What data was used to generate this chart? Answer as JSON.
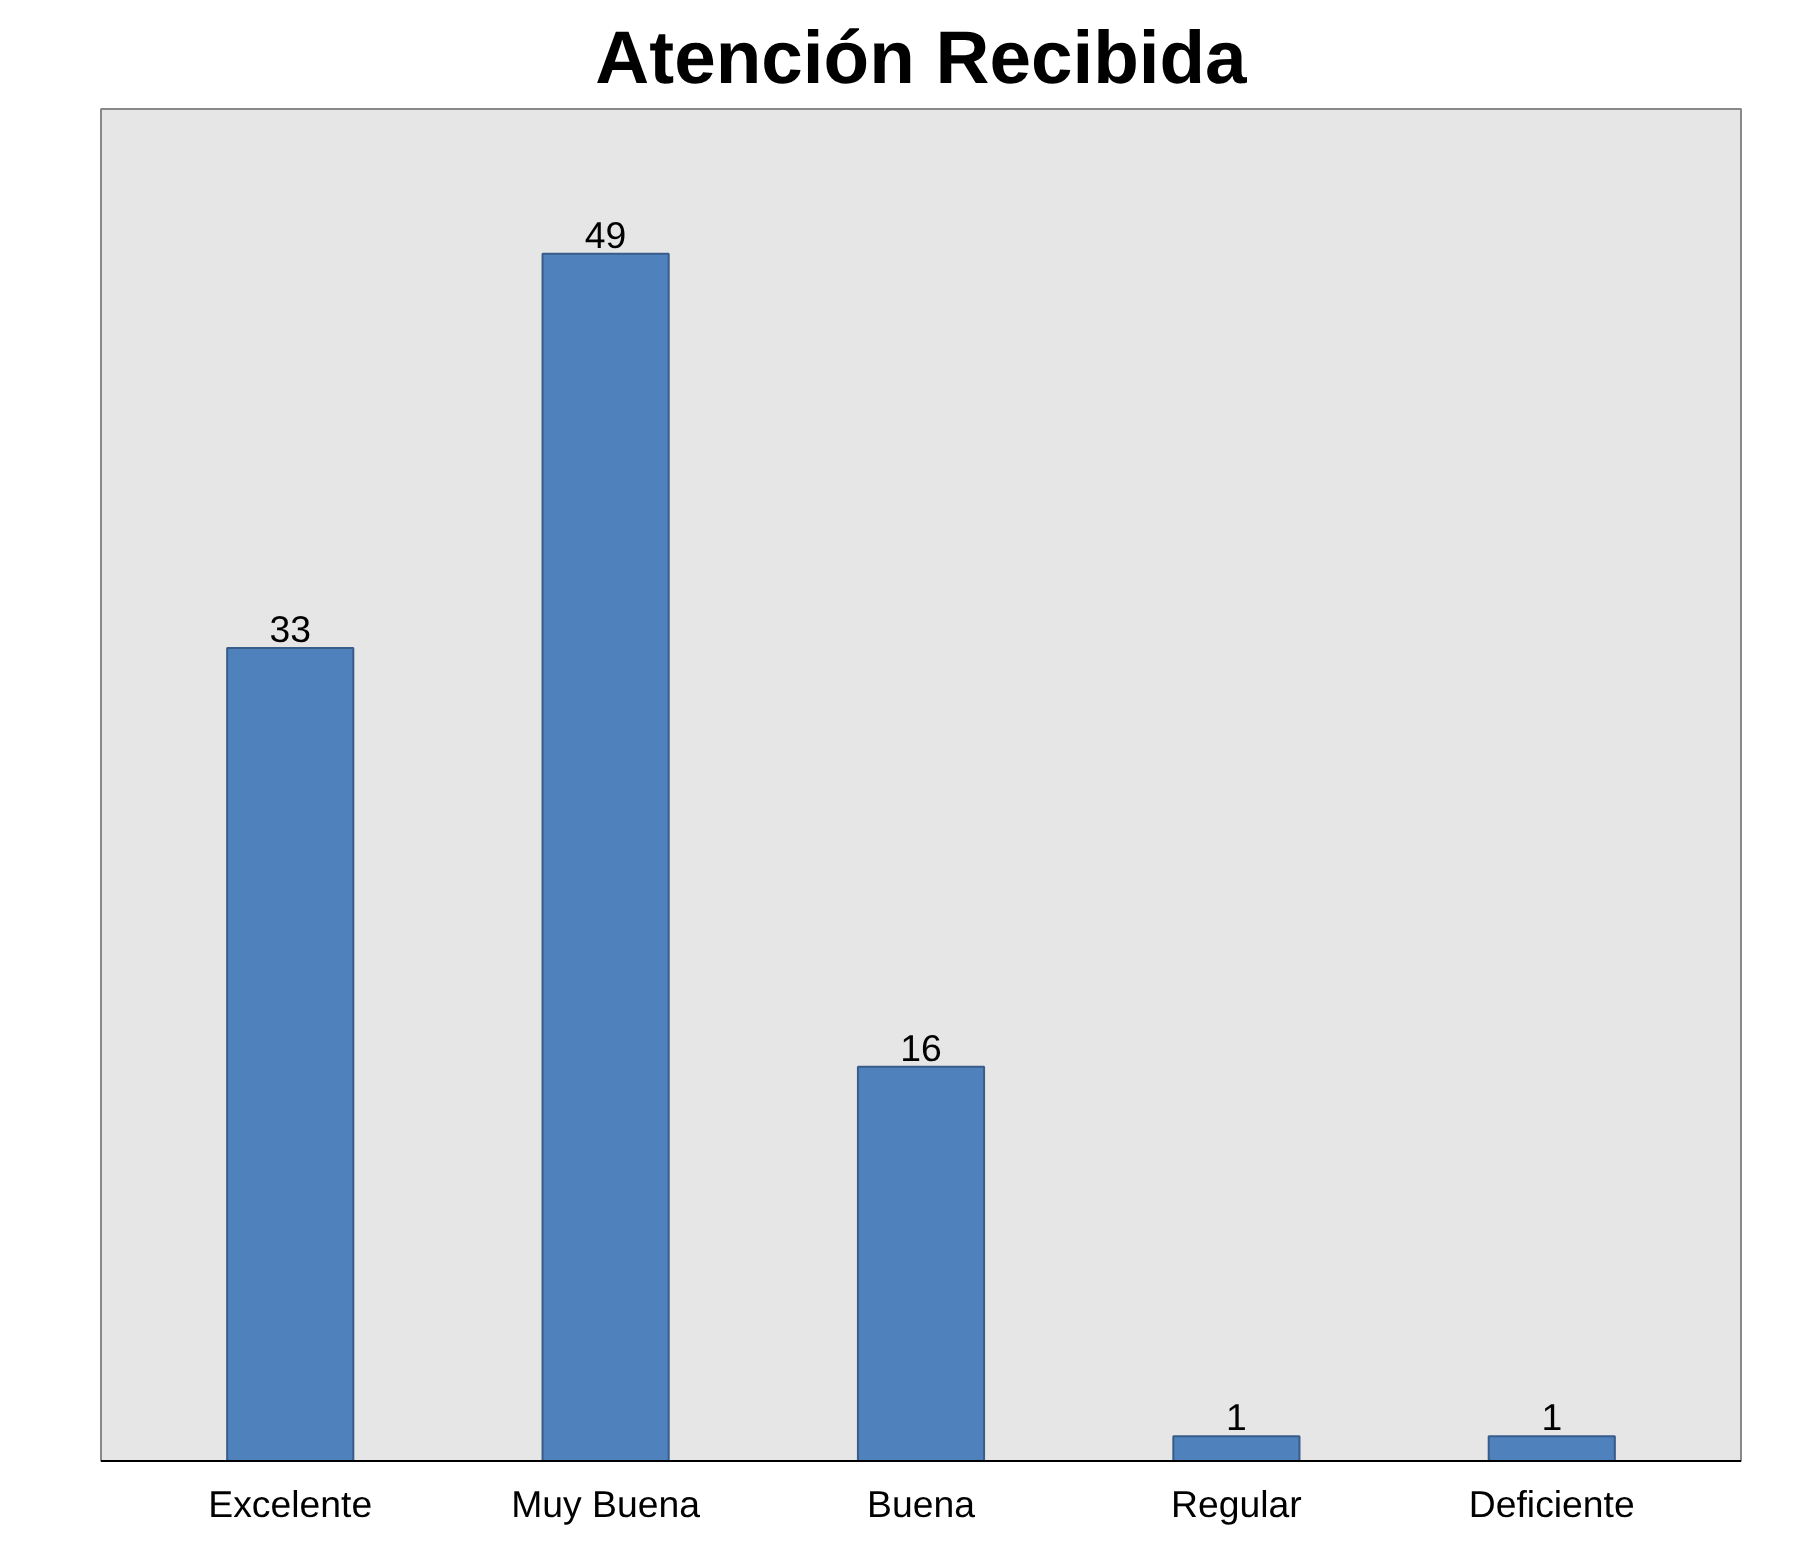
{
  "chart_data": {
    "type": "bar",
    "title": "Atención Recibida",
    "categories": [
      "Excelente",
      "Muy Buena",
      "Buena",
      "Regular",
      "Deficiente"
    ],
    "values": [
      33,
      49,
      16,
      1,
      1
    ],
    "color": "#4f81bd",
    "data_labels": true,
    "grid": false
  }
}
